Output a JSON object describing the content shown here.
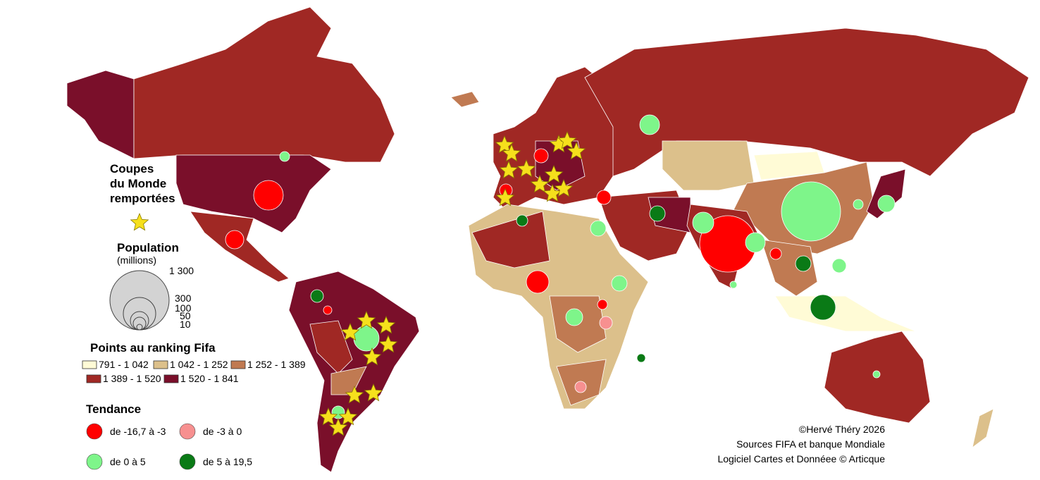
{
  "legend": {
    "cups": {
      "title_lines": [
        "Coupes",
        "du Monde",
        "remportées"
      ]
    },
    "population": {
      "title": "Population",
      "unit": "(millions)",
      "sizes": [
        "1 300",
        "300",
        "100",
        "50",
        "10"
      ]
    },
    "ranking": {
      "title": "Points au ranking Fifa",
      "classes": [
        {
          "label": "791 - 1 042",
          "color": "#fffbd6"
        },
        {
          "label": "1 042 - 1 252",
          "color": "#dcc08b"
        },
        {
          "label": "1 252 - 1 389",
          "color": "#c07a52"
        },
        {
          "label": "1 389 - 1 520",
          "color": "#a02824"
        },
        {
          "label": "1 520 - 1 841",
          "color": "#7a0f2a"
        }
      ]
    },
    "trend": {
      "title": "Tendance",
      "classes": [
        {
          "label": "de -16,7 à -3",
          "color": "#ff0000"
        },
        {
          "label": "de -3 à 0",
          "color": "#f79090"
        },
        {
          "label": "de 0 à 5",
          "color": "#7ef58a"
        },
        {
          "label": "de 5 à 19,5",
          "color": "#0a7a16"
        }
      ]
    }
  },
  "credits": [
    "©Hervé Théry 2026",
    "Sources FIFA et banque Mondiale",
    "Logiciel Cartes et Donnéee © Articque"
  ]
}
